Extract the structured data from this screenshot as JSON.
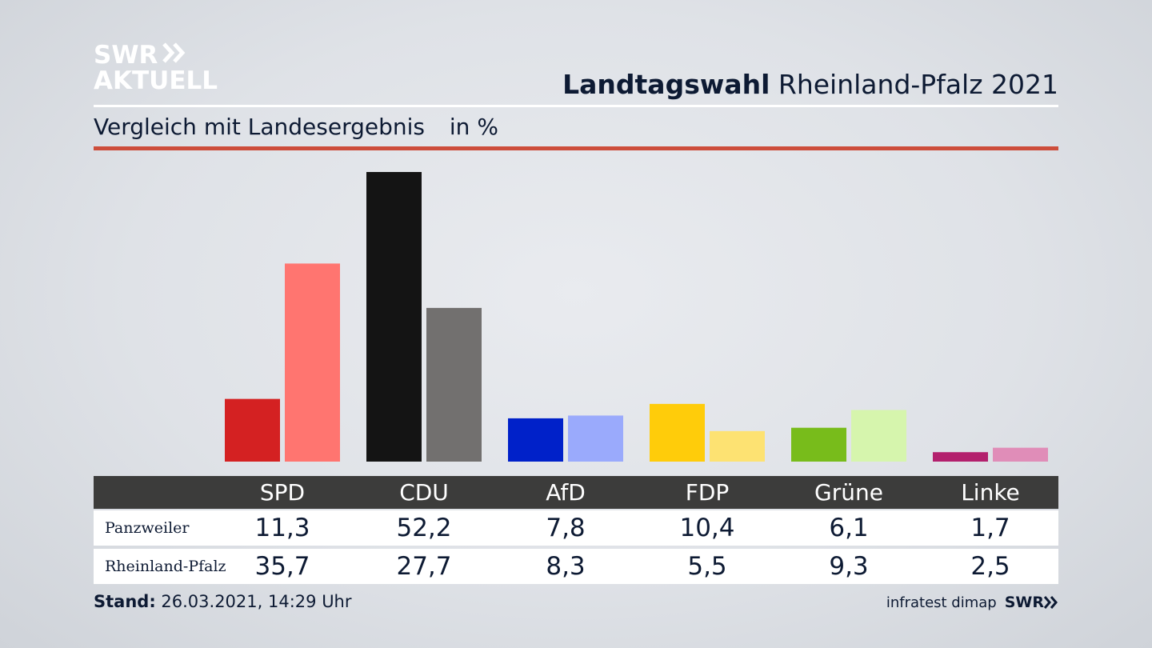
{
  "brand": {
    "line1": "SWR",
    "line2": "AKTUELL",
    "small": "SWR"
  },
  "header": {
    "title_bold": "Landtagswahl",
    "title_rest": "Rheinland-Pfalz 2021"
  },
  "subtitle": {
    "text": "Vergleich mit Landesergebnis",
    "unit": "in %"
  },
  "colors": {
    "red_rule": "#cd4d3b",
    "table_header": "#3c3c3b"
  },
  "chart_data": {
    "type": "bar",
    "categories": [
      "SPD",
      "CDU",
      "AfD",
      "FDP",
      "Grüne",
      "Linke"
    ],
    "series": [
      {
        "name": "Panzweiler",
        "values": [
          11.3,
          52.2,
          7.8,
          10.4,
          6.1,
          1.7
        ],
        "labels": [
          "11,3",
          "52,2",
          "7,8",
          "10,4",
          "6,1",
          "1,7"
        ],
        "colors": [
          "#d42122",
          "#141414",
          "#0021c9",
          "#ffcc0a",
          "#78bc1b",
          "#b3206d"
        ]
      },
      {
        "name": "Rheinland-Pfalz",
        "values": [
          35.7,
          27.7,
          8.3,
          5.5,
          9.3,
          2.5
        ],
        "labels": [
          "35,7",
          "27,7",
          "8,3",
          "5,5",
          "9,3",
          "2,5"
        ],
        "colors": [
          "#ff7570",
          "#72706f",
          "#9aaafc",
          "#fde272",
          "#d6f5ad",
          "#e08db8"
        ]
      }
    ],
    "ylim": [
      0,
      52.2
    ]
  },
  "footer": {
    "stand_label": "Stand:",
    "stand_value": "26.03.2021, 14:29 Uhr",
    "source": "infratest dimap"
  }
}
